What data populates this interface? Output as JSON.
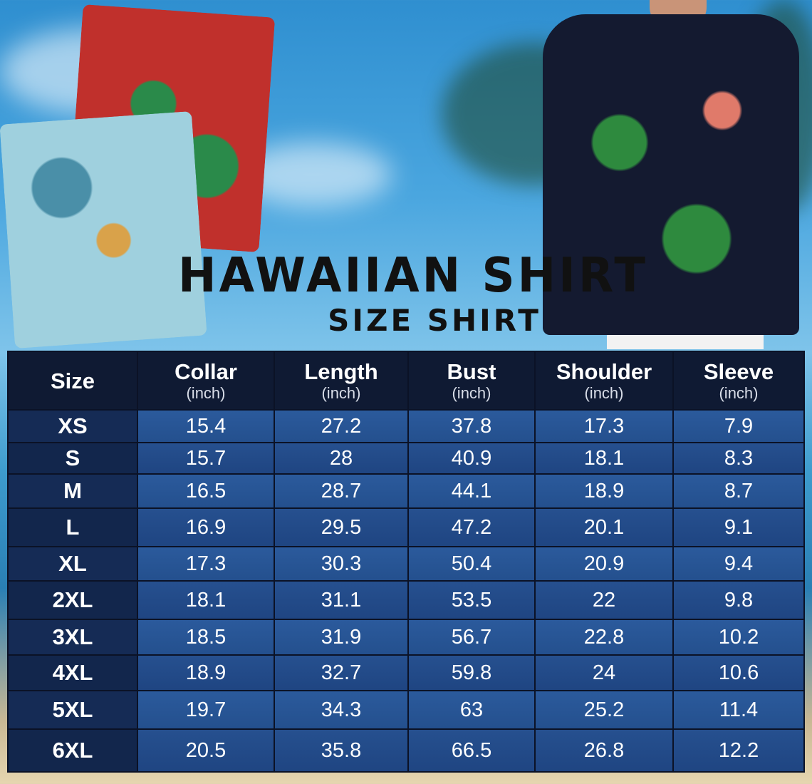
{
  "title": "HAWAIIAN SHIRT",
  "subtitle": "SIZE SHIRT",
  "table": {
    "headers": [
      {
        "label": "Size",
        "unit": ""
      },
      {
        "label": "Collar",
        "unit": "(inch)"
      },
      {
        "label": "Length",
        "unit": "(inch)"
      },
      {
        "label": "Bust",
        "unit": "(inch)"
      },
      {
        "label": "Shoulder",
        "unit": "(inch)"
      },
      {
        "label": "Sleeve",
        "unit": "(inch)"
      }
    ],
    "rows": [
      [
        "XS",
        "15.4",
        "27.2",
        "37.8",
        "17.3",
        "7.9"
      ],
      [
        "S",
        "15.7",
        "28",
        "40.9",
        "18.1",
        "8.3"
      ],
      [
        "M",
        "16.5",
        "28.7",
        "44.1",
        "18.9",
        "8.7"
      ],
      [
        "L",
        "16.9",
        "29.5",
        "47.2",
        "20.1",
        "9.1"
      ],
      [
        "XL",
        "17.3",
        "30.3",
        "50.4",
        "20.9",
        "9.4"
      ],
      [
        "2XL",
        "18.1",
        "31.1",
        "53.5",
        "22",
        "9.8"
      ],
      [
        "3XL",
        "18.5",
        "31.9",
        "56.7",
        "22.8",
        "10.2"
      ],
      [
        "4XL",
        "18.9",
        "32.7",
        "59.8",
        "24",
        "10.6"
      ],
      [
        "5XL",
        "19.7",
        "34.3",
        "63",
        "25.2",
        "11.4"
      ],
      [
        "6XL",
        "20.5",
        "35.8",
        "66.5",
        "26.8",
        "12.2"
      ]
    ]
  },
  "colors": {
    "header": "#0f1a33",
    "size_column": "#152b55",
    "cell": "#2b5a9c"
  }
}
